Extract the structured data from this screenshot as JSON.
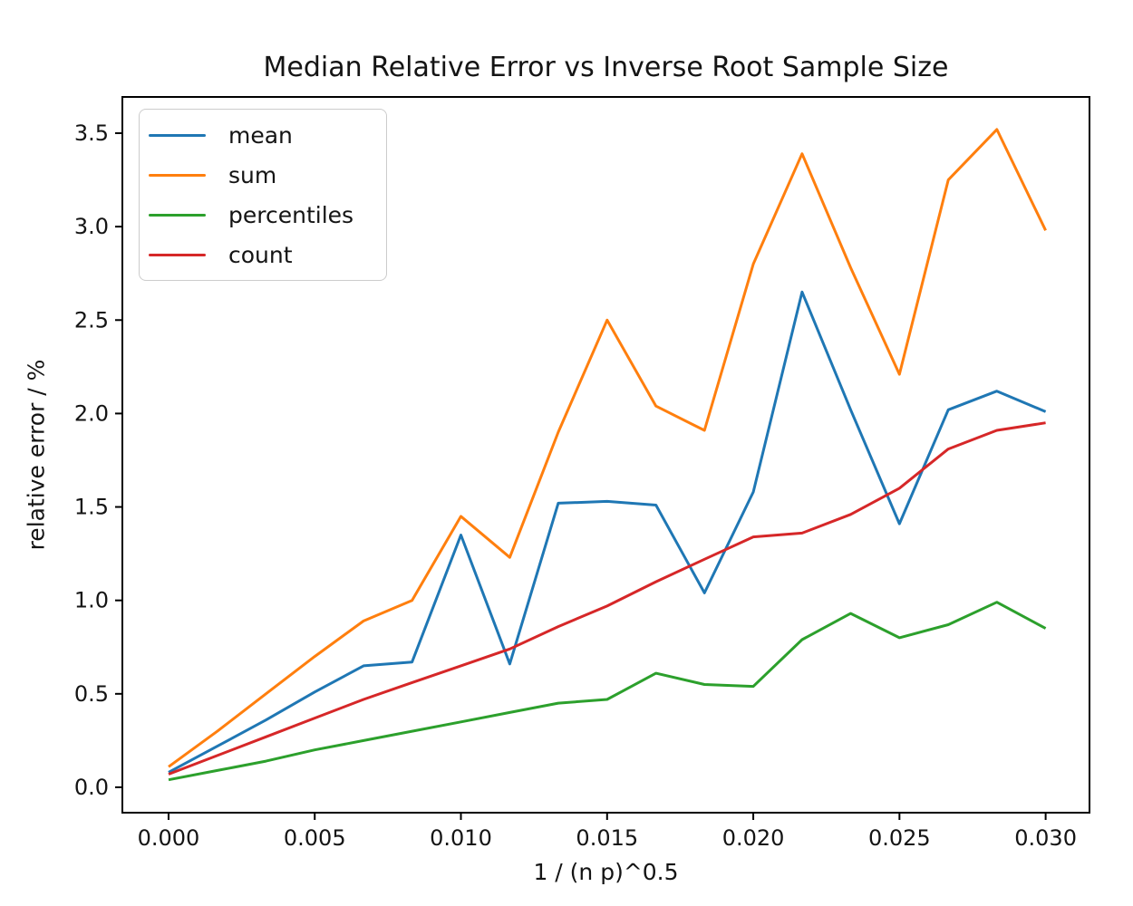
{
  "chart_data": {
    "type": "line",
    "title": "Median Relative Error vs Inverse Root Sample Size",
    "xlabel": "1 / (n p)^0.5",
    "ylabel": "relative error / %",
    "x": [
      0.0,
      0.00167,
      0.00333,
      0.005,
      0.00667,
      0.00833,
      0.01,
      0.01167,
      0.01333,
      0.015,
      0.01667,
      0.01833,
      0.02,
      0.02167,
      0.02333,
      0.025,
      0.02667,
      0.02833,
      0.03
    ],
    "series": [
      {
        "name": "mean",
        "color": "#1f77b4",
        "values": [
          0.08,
          0.22,
          0.36,
          0.51,
          0.65,
          0.67,
          1.35,
          0.66,
          1.52,
          1.53,
          1.51,
          1.04,
          1.58,
          2.65,
          2.02,
          1.41,
          2.02,
          2.12,
          2.01
        ]
      },
      {
        "name": "sum",
        "color": "#ff7f0e",
        "values": [
          0.11,
          0.3,
          0.5,
          0.7,
          0.89,
          1.0,
          1.45,
          1.23,
          1.9,
          2.5,
          2.04,
          1.91,
          2.8,
          3.39,
          2.78,
          2.21,
          3.25,
          3.52,
          2.98
        ]
      },
      {
        "name": "percentiles",
        "color": "#2ca02c",
        "values": [
          0.04,
          0.09,
          0.14,
          0.2,
          0.25,
          0.3,
          0.35,
          0.4,
          0.45,
          0.47,
          0.61,
          0.55,
          0.54,
          0.79,
          0.93,
          0.8,
          0.87,
          0.99,
          0.85
        ]
      },
      {
        "name": "count",
        "color": "#d62728",
        "values": [
          0.07,
          0.17,
          0.27,
          0.37,
          0.47,
          0.56,
          0.65,
          0.74,
          0.86,
          0.97,
          1.1,
          1.22,
          1.34,
          1.36,
          1.46,
          1.6,
          1.81,
          1.91,
          1.95
        ]
      }
    ],
    "xlim": [
      -0.00158,
      0.0315
    ],
    "ylim": [
      -0.136,
      3.694
    ],
    "xticks": {
      "values": [
        0.0,
        0.005,
        0.01,
        0.015,
        0.02,
        0.025,
        0.03
      ],
      "labels": [
        "0.000",
        "0.005",
        "0.010",
        "0.015",
        "0.020",
        "0.025",
        "0.030"
      ]
    },
    "yticks": {
      "values": [
        0.0,
        0.5,
        1.0,
        1.5,
        2.0,
        2.5,
        3.0,
        3.5
      ],
      "labels": [
        "0.0",
        "0.5",
        "1.0",
        "1.5",
        "2.0",
        "2.5",
        "3.0",
        "3.5"
      ]
    },
    "legend": {
      "position": "upper left",
      "entries": [
        "mean",
        "sum",
        "percentiles",
        "count"
      ]
    },
    "grid": false,
    "line_width": 3
  }
}
